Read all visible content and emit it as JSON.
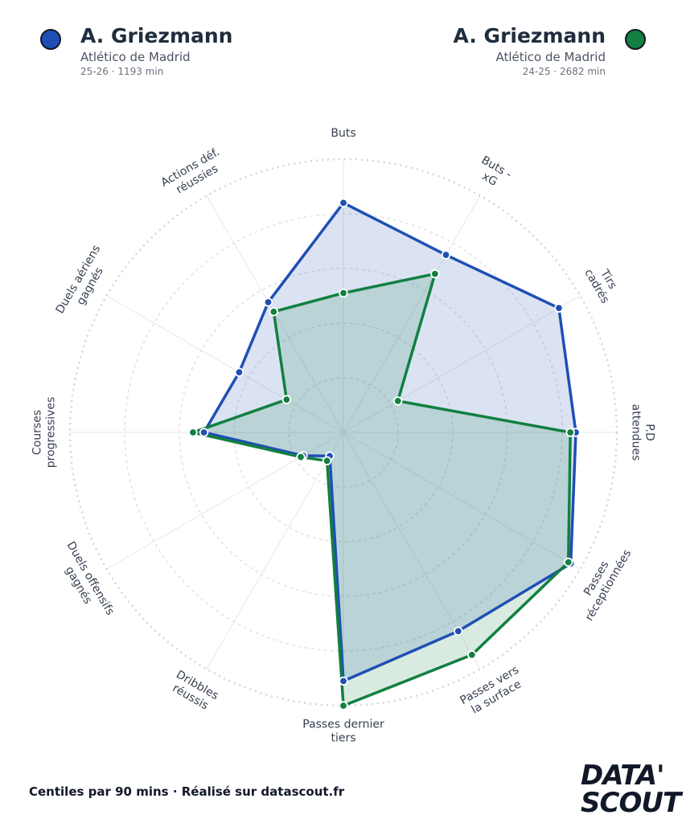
{
  "players": {
    "left": {
      "name": "A. Griezmann",
      "club": "Atlético de Madrid",
      "season": "25-26 · 1193 min",
      "color": "#1f4fb5"
    },
    "right": {
      "name": "A. Griezmann",
      "club": "Atlético de Madrid",
      "season": "24-25 · 2682 min",
      "color": "#118040"
    }
  },
  "footer": {
    "text": "Centiles par 90 mins · Réalisé sur datascout.fr"
  },
  "logo": {
    "line1": "DATA'",
    "line2": "SCOUT"
  },
  "chart_data": {
    "type": "radar",
    "categories": [
      "Buts",
      "Buts - xG",
      "Tirs cadrés",
      "P.D attendues",
      "Passes réceptionnées",
      "Passes vers la surface",
      "Passes dernier tiers",
      "Dribbles réussis",
      "Duels offensifs gagnés",
      "Courses progressives",
      "Duels aériens gagnés",
      "Actions déf. réussies"
    ],
    "label_lines": [
      [
        "Buts"
      ],
      [
        "Buts -",
        "xG"
      ],
      [
        "Tirs",
        "cadrés"
      ],
      [
        "P.D",
        "attendues"
      ],
      [
        "Passes",
        "réceptionnées"
      ],
      [
        "Passes vers",
        "la surface"
      ],
      [
        "Passes dernier",
        "tiers"
      ],
      [
        "Dribbles",
        "réussis"
      ],
      [
        "Duels offensifs",
        "gagnés"
      ],
      [
        "Courses",
        "progressives"
      ],
      [
        "Duels aériens",
        "gagnés"
      ],
      [
        "Actions déf.",
        "réussies"
      ]
    ],
    "rlim": [
      0,
      100
    ],
    "rings": [
      20,
      40,
      60,
      80,
      100
    ],
    "series": [
      {
        "name": "A. Griezmann 25-26",
        "color": "#1f4fb5",
        "fill": "rgba(31,79,181,0.16)",
        "values": [
          84,
          75,
          91,
          85,
          96,
          84,
          91,
          10,
          17,
          51,
          44,
          55
        ]
      },
      {
        "name": "A. Griezmann 24-25",
        "color": "#118040",
        "fill": "rgba(17,128,64,0.16)",
        "values": [
          51,
          67,
          23,
          83,
          95,
          94,
          100,
          12,
          18,
          55,
          24,
          51
        ]
      }
    ]
  }
}
